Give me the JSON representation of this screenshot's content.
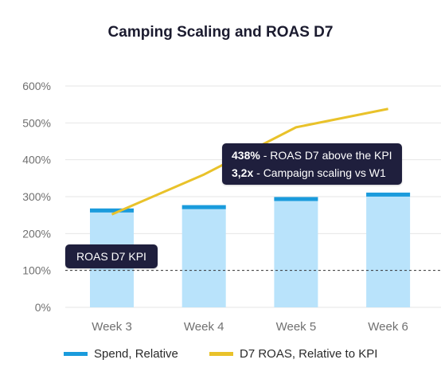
{
  "title": "Camping Scaling and ROAS D7",
  "colors": {
    "spend_cap": "#1a9bdc",
    "spend_bar": "#b9e3fb",
    "roas_line": "#e9c22a",
    "kpi_line": "#333333",
    "callout_bg": "#1f1f3d",
    "grid": "#e6e6e6"
  },
  "chart_data": {
    "type": "bar",
    "title": "Camping Scaling and ROAS D7",
    "categories": [
      "Week 3",
      "Week 4",
      "Week 5",
      "Week 6"
    ],
    "y_ticks": [
      "0%",
      "100%",
      "200%",
      "300%",
      "400%",
      "500%",
      "600%"
    ],
    "ylim": [
      0,
      600
    ],
    "grid": true,
    "series": [
      {
        "name": "Spend, Relative",
        "type": "bar",
        "values": [
          268,
          277,
          299,
          311
        ]
      },
      {
        "name": "D7 ROAS, Relative to KPI",
        "type": "line",
        "values": [
          252,
          360,
          488,
          538
        ]
      }
    ],
    "kpi": {
      "value": 100,
      "label": "ROAS D7 KPI"
    },
    "annotation": {
      "lines": [
        {
          "bold": "438%",
          "text": " - ROAS D7 above the KPI"
        },
        {
          "bold": "3,2x",
          "text": " - Campaign scaling vs W1"
        }
      ]
    },
    "legend_position": "bottom"
  }
}
